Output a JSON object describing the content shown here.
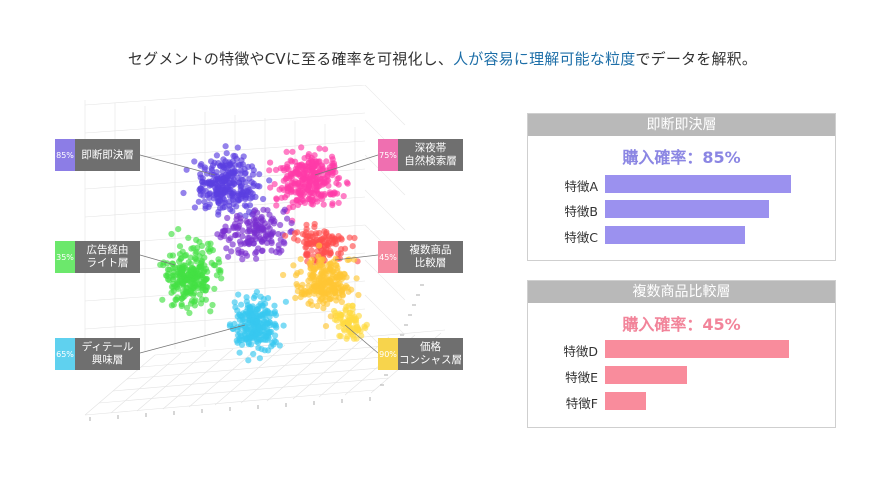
{
  "headline": {
    "before": "セグメントの特徴やCVに至る確率を可視化し、",
    "highlight": "人が容易に理解可能な粒度",
    "after": "でデータを解釈。"
  },
  "scatter": {
    "labels": [
      {
        "id": "immediate",
        "pct": "85%",
        "text": "即断即決層",
        "color": "#8c7de6"
      },
      {
        "id": "ad",
        "pct": "35%",
        "text": "広告経由\nライト層",
        "color": "#6ce86c"
      },
      {
        "id": "detail",
        "pct": "65%",
        "text": "ディテール\n興味層",
        "color": "#5fd1ef"
      },
      {
        "id": "midnight",
        "pct": "75%",
        "text": "深夜帯\n自然検索層",
        "color": "#ef6fb0"
      },
      {
        "id": "compare",
        "pct": "45%",
        "text": "複数商品\n比較層",
        "color": "#f68aa0"
      },
      {
        "id": "price",
        "pct": "90%",
        "text": "価格\nコンシャス層",
        "color": "#f7d44c"
      }
    ]
  },
  "panels": [
    {
      "title": "即断即決層",
      "prob": "購入確率：85%",
      "prob_color": "#8b86e3",
      "bar_color": "#9b91ef",
      "features": [
        {
          "name": "特徴A",
          "value": 0.86
        },
        {
          "name": "特徴B",
          "value": 0.76
        },
        {
          "name": "特徴C",
          "value": 0.65
        }
      ]
    },
    {
      "title": "複数商品比較層",
      "prob": "購入確率：45%",
      "prob_color": "#f2849a",
      "bar_color": "#f98c9c",
      "features": [
        {
          "name": "特徴D",
          "value": 0.85
        },
        {
          "name": "特徴E",
          "value": 0.38
        },
        {
          "name": "特徴F",
          "value": 0.19
        }
      ]
    }
  ]
}
